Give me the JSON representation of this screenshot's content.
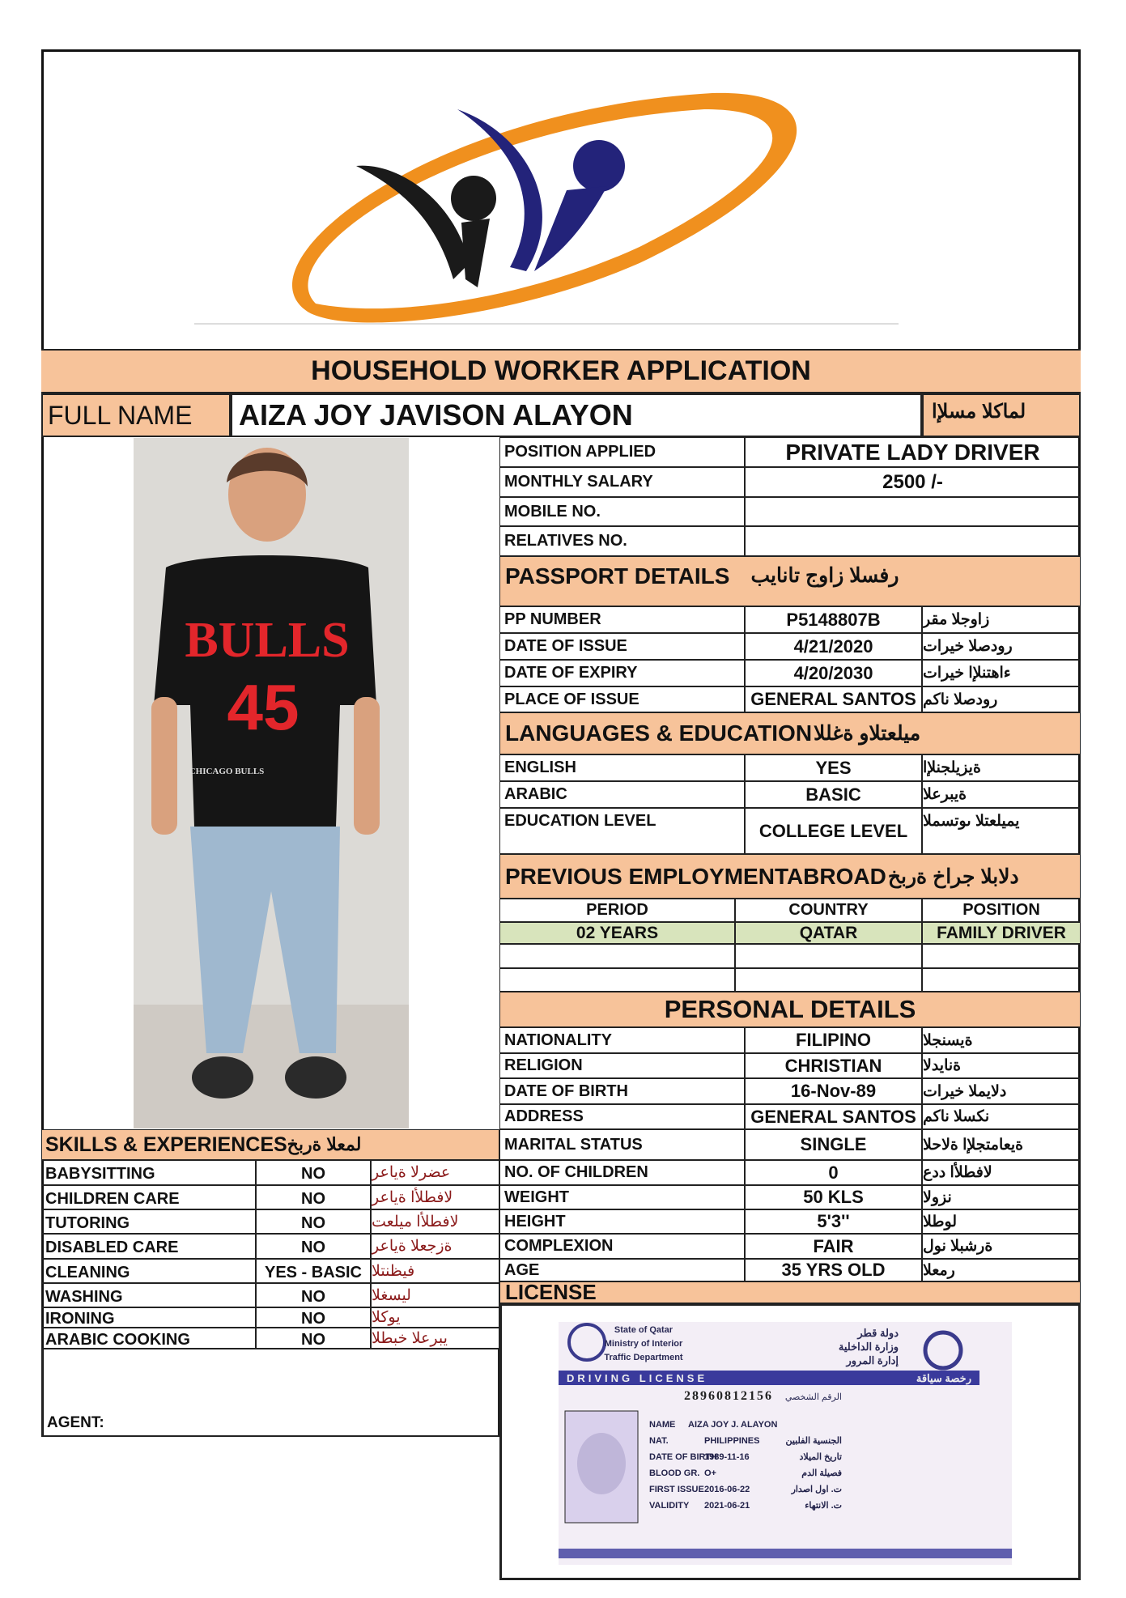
{
  "logo": {
    "colors": {
      "orange": "#f0901e",
      "black": "#1a1a1a",
      "blue": "#23237a"
    }
  },
  "title": "HOUSEHOLD WORKER APPLICATION",
  "full_name": {
    "label": "FULL NAME",
    "value": "AIZA JOY JAVISON ALAYON",
    "label_ar": "لماكلا مسلإا"
  },
  "position_block": [
    {
      "label": "POSITION APPLIED",
      "value": "PRIVATE LADY DRIVER"
    },
    {
      "label": "MONTHLY SALARY",
      "value": "2500 /-"
    },
    {
      "label": "MOBILE NO.",
      "value": ""
    },
    {
      "label": "RELATIVES NO.",
      "value": ""
    }
  ],
  "passport": {
    "header": "PASSPORT DETAILS",
    "header_ar": "رفسلا زاوج تانايب",
    "rows": [
      {
        "label": "PP NUMBER",
        "value": "P5148807B",
        "ar": "زاوجلا مقر"
      },
      {
        "label": "DATE OF ISSUE",
        "value": "4/21/2020",
        "ar": "رودصلا خيرات"
      },
      {
        "label": "DATE OF EXPIRY",
        "value": "4/20/2030",
        "ar": "ءاهتنلإا خيرات"
      },
      {
        "label": "PLACE OF ISSUE",
        "value": "GENERAL SANTOS",
        "ar": "رودصلا ناكم"
      }
    ]
  },
  "languages": {
    "header": "LANGUAGES & EDUCATION",
    "header_ar": "ميلعتلاو ةغللا",
    "rows": [
      {
        "label": "ENGLISH",
        "value": "YES",
        "ar": "ةيزيلجنلإا"
      },
      {
        "label": "ARABIC",
        "value": "BASIC",
        "ar": "ةيبرعلا"
      },
      {
        "label": "EDUCATION LEVEL",
        "value": "COLLEGE LEVEL",
        "ar": "يميلعتلا ىوتسملا"
      }
    ]
  },
  "employment": {
    "header": "PREVIOUS EMPLOYMENTABROAD",
    "header_ar": "دلابلا جراخ ةربخ",
    "columns": [
      "PERIOD",
      "COUNTRY",
      "POSITION"
    ],
    "rows": [
      [
        "02 YEARS",
        "QATAR",
        "FAMILY DRIVER"
      ],
      [
        "",
        "",
        ""
      ],
      [
        "",
        "",
        ""
      ]
    ],
    "highlight": "#d8e4bc"
  },
  "personal": {
    "header": "PERSONAL DETAILS",
    "rows": [
      {
        "label": "NATIONALITY",
        "value": "FILIPINO",
        "ar": "ةيسنجلا"
      },
      {
        "label": "RELIGION",
        "value": "CHRISTIAN",
        "ar": "ةنايدلا"
      },
      {
        "label": "DATE OF BIRTH",
        "value": "16-Nov-89",
        "ar": "دلايملا خيرات"
      },
      {
        "label": "ADDRESS",
        "value": "GENERAL SANTOS",
        "ar": "نكسلا ناكم"
      },
      {
        "label": "MARITAL STATUS",
        "value": "SINGLE",
        "ar": "ةيعامتجلإا ةلاحلا"
      },
      {
        "label": "NO. OF CHILDREN",
        "value": "0",
        "ar": "لافطلأا ددع"
      },
      {
        "label": "WEIGHT",
        "value": "50 KLS",
        "ar": "نزولا"
      },
      {
        "label": "HEIGHT",
        "value": "5'3''",
        "ar": "لوطلا"
      },
      {
        "label": "COMPLEXION",
        "value": "FAIR",
        "ar": "ةرشبلا نول"
      },
      {
        "label": "AGE",
        "value": "35 YRS OLD",
        "ar": "رمعلا"
      }
    ]
  },
  "skills": {
    "header": "SKILLS & EXPERIENCES",
    "header_ar": "لمعلا ةربخ",
    "rows": [
      {
        "label": "BABYSITTING",
        "value": "NO",
        "ar": "عضرلا ةياعر"
      },
      {
        "label": "CHILDREN CARE",
        "value": "NO",
        "ar": "لافطلأا ةياعر"
      },
      {
        "label": "TUTORING",
        "value": "NO",
        "ar": "لافطلأا ميلعت"
      },
      {
        "label": "DISABLED CARE",
        "value": "NO",
        "ar": "ةزجعلا ةياعر"
      },
      {
        "label": "CLEANING",
        "value": "YES - BASIC",
        "ar": "فيظنتلا"
      },
      {
        "label": "WASHING",
        "value": "NO",
        "ar": "ليسغلا"
      },
      {
        "label": "IRONING",
        "value": "NO",
        "ar": "يوكلا"
      },
      {
        "label": "ARABIC COOKING",
        "value": "NO",
        "ar": "يبرعلا خبطلا"
      }
    ]
  },
  "agent_label": "AGENT:",
  "photo": {
    "shirt_text": "BULLS",
    "shirt_number": "45",
    "shirt_logo_text": "CHICAGO BULLS"
  },
  "license": {
    "header": "LICENSE",
    "card": {
      "issuer_en": [
        "State of Qatar",
        "Ministry of Interior",
        "Traffic Department"
      ],
      "issuer_ar": [
        "دولة قطر",
        "وزارة الداخلية",
        "إدارة المرور"
      ],
      "title_en": "DRIVING LICENSE",
      "title_ar": "رخصة سياقة",
      "id_number": "28960812156",
      "id_label_ar": "الرقم الشخصي",
      "fields": [
        {
          "label": "NAME",
          "value": "AIZA JOY J. ALAYON",
          "ar": ""
        },
        {
          "label": "NAT.",
          "value": "PHILIPPINES",
          "ar": "الجنسية الفلبين"
        },
        {
          "label": "DATE OF BIRTH",
          "value": "1989-11-16",
          "ar": "تاريخ الميلاد"
        },
        {
          "label": "BLOOD GR.",
          "value": "O+",
          "ar": "فصيلة الدم"
        },
        {
          "label": "FIRST ISSUE",
          "value": "2016-06-22",
          "ar": "ت. اول اصدار"
        },
        {
          "label": "VALIDITY",
          "value": "2021-06-21",
          "ar": "ت. الانتهاء"
        }
      ]
    }
  }
}
